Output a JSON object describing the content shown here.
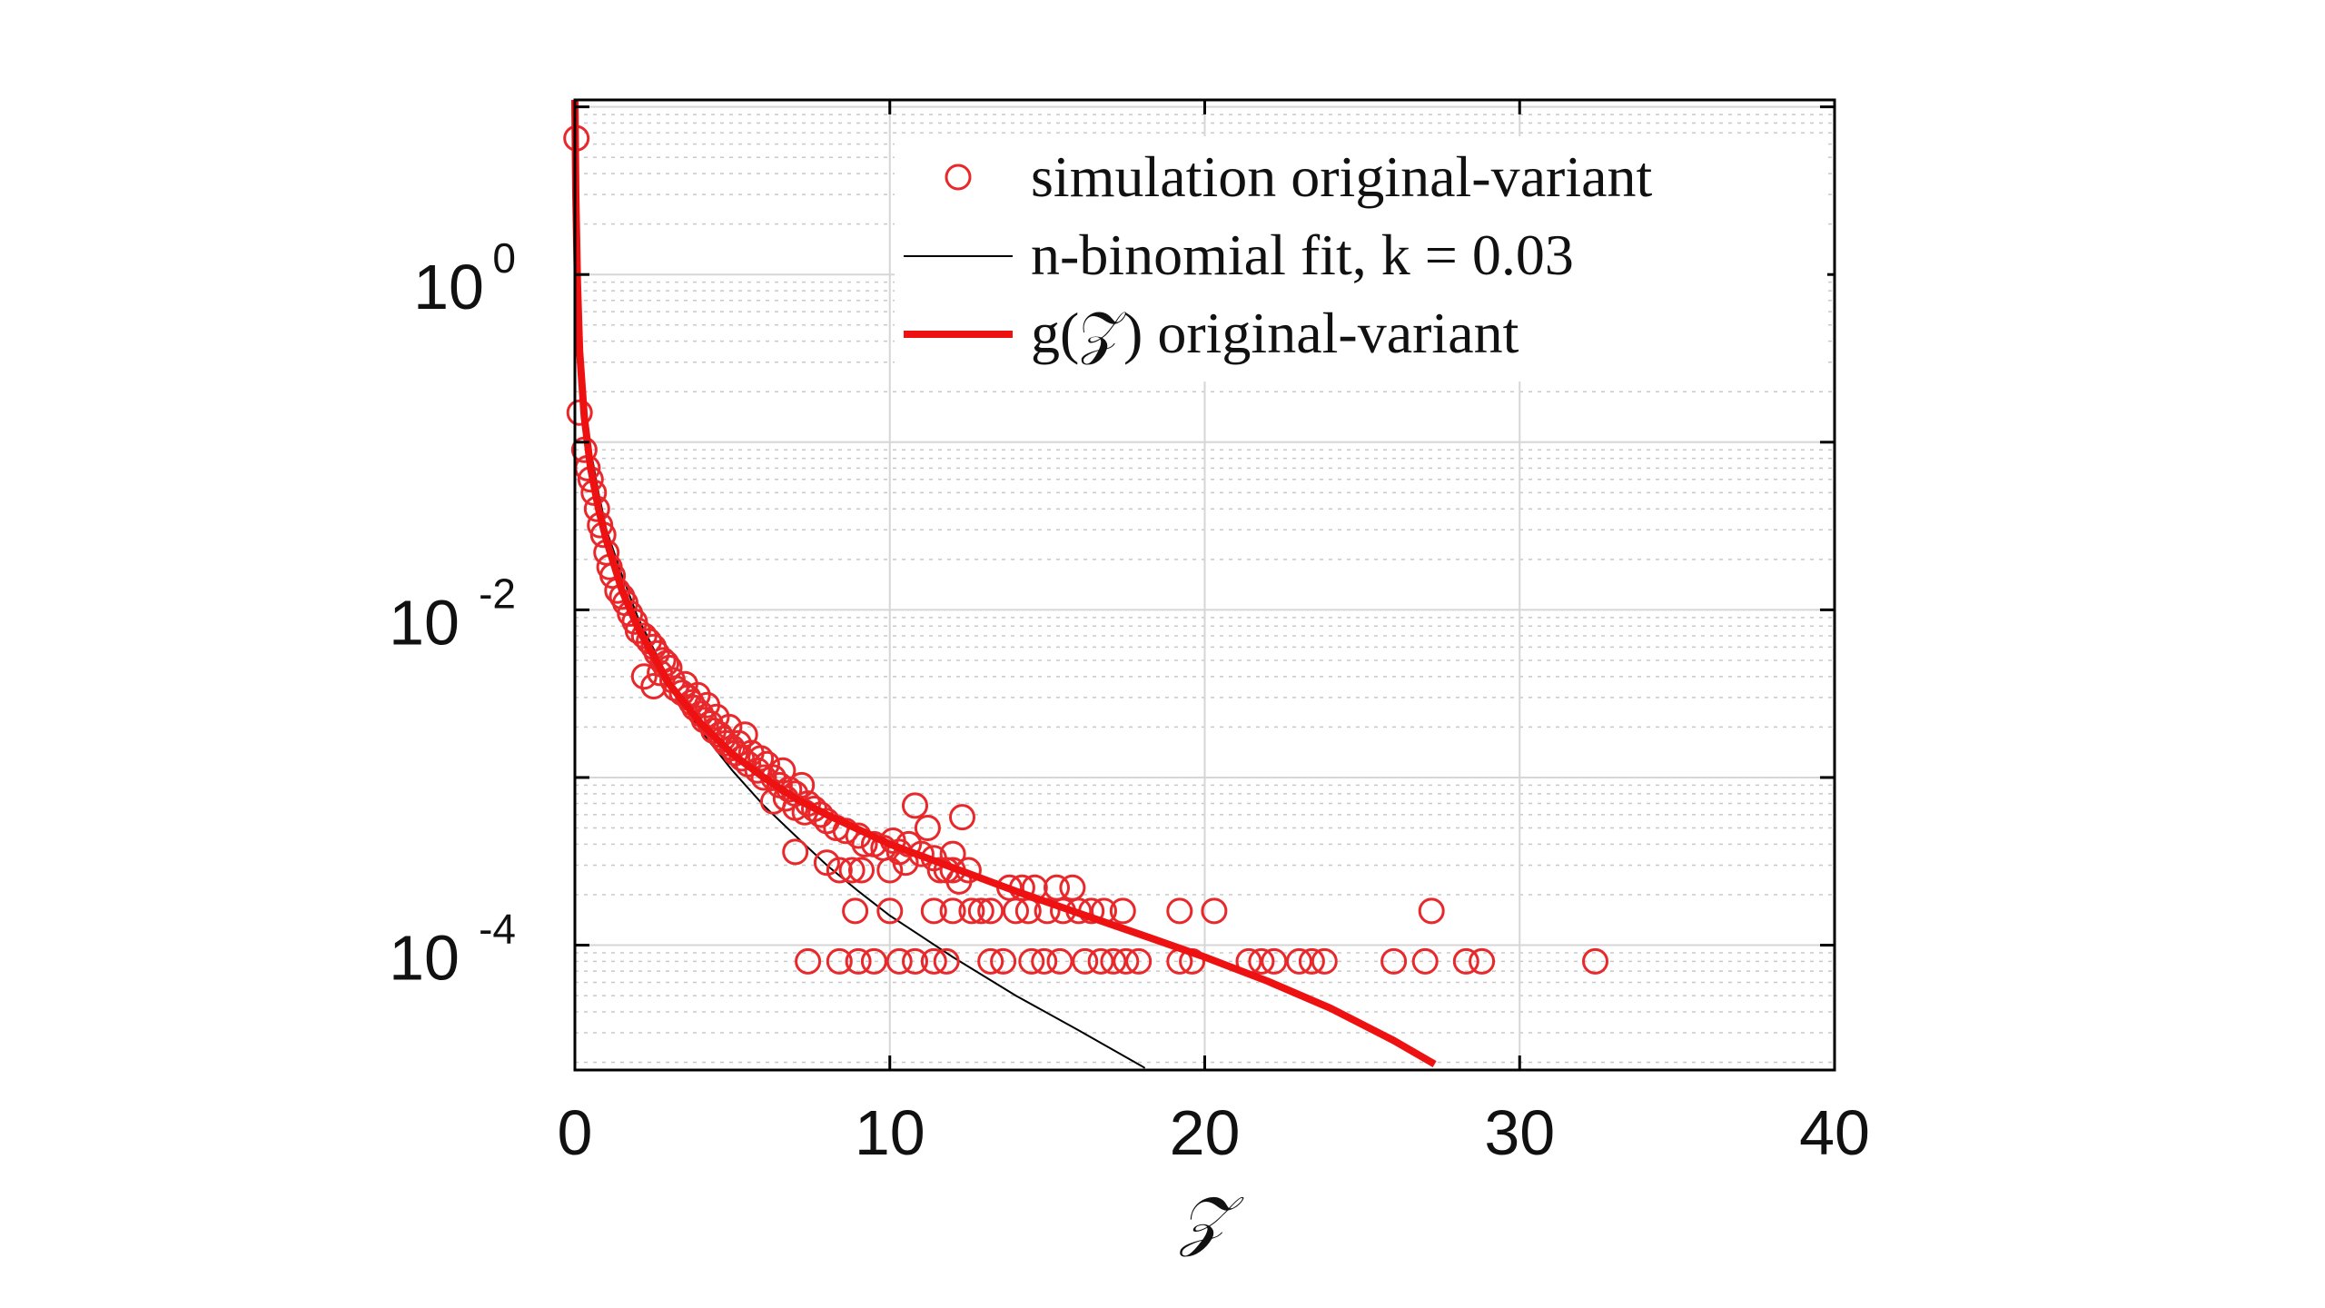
{
  "chart_data": {
    "type": "scatter",
    "title": "",
    "xlabel": "𝒵",
    "ylabel": "",
    "x_scale": "linear",
    "y_scale": "log",
    "xlim": [
      0,
      40
    ],
    "ylim": [
      1.8e-05,
      11
    ],
    "x_ticks": [
      0,
      10,
      20,
      30,
      40
    ],
    "x_tick_labels": [
      "0",
      "10",
      "20",
      "30",
      "40"
    ],
    "y_ticks": [
      1,
      0.01,
      0.0001
    ],
    "y_tick_labels": [
      {
        "base": "10",
        "exp": "0"
      },
      {
        "base": "10",
        "exp": "-2"
      },
      {
        "base": "10",
        "exp": "-4"
      }
    ],
    "grid": true,
    "minor_grid": true,
    "legend_position": "top-right",
    "series": [
      {
        "name": "simulation original-variant",
        "kind": "markers",
        "marker": "open-circle",
        "color": "#e8282b",
        "points": [
          [
            0.05,
            6.5
          ],
          [
            0.15,
            0.15
          ],
          [
            0.3,
            0.09
          ],
          [
            0.4,
            0.07
          ],
          [
            0.5,
            0.06
          ],
          [
            0.6,
            0.05
          ],
          [
            0.7,
            0.04
          ],
          [
            0.8,
            0.032
          ],
          [
            0.9,
            0.028
          ],
          [
            1.0,
            0.022
          ],
          [
            1.1,
            0.018
          ],
          [
            1.2,
            0.016
          ],
          [
            1.35,
            0.013
          ],
          [
            1.5,
            0.012
          ],
          [
            1.6,
            0.011
          ],
          [
            1.75,
            0.0095
          ],
          [
            1.9,
            0.0085
          ],
          [
            2.0,
            0.0075
          ],
          [
            2.2,
            0.007
          ],
          [
            2.35,
            0.0065
          ],
          [
            2.5,
            0.006
          ],
          [
            2.6,
            0.0055
          ],
          [
            2.8,
            0.005
          ],
          [
            2.9,
            0.0048
          ],
          [
            3.0,
            0.0045
          ],
          [
            2.2,
            0.004
          ],
          [
            2.5,
            0.0035
          ],
          [
            2.7,
            0.0042
          ],
          [
            3.1,
            0.0038
          ],
          [
            3.2,
            0.0034
          ],
          [
            3.4,
            0.0032
          ],
          [
            3.5,
            0.0036
          ],
          [
            3.6,
            0.003
          ],
          [
            3.7,
            0.0028
          ],
          [
            3.8,
            0.0026
          ],
          [
            3.9,
            0.0031
          ],
          [
            4.0,
            0.0024
          ],
          [
            4.1,
            0.0022
          ],
          [
            4.2,
            0.0027
          ],
          [
            4.3,
            0.0021
          ],
          [
            4.4,
            0.0019
          ],
          [
            4.5,
            0.0023
          ],
          [
            4.6,
            0.0018
          ],
          [
            4.7,
            0.0017
          ],
          [
            4.8,
            0.0016
          ],
          [
            4.9,
            0.002
          ],
          [
            5.0,
            0.0015
          ],
          [
            5.1,
            0.0014
          ],
          [
            5.2,
            0.0016
          ],
          [
            5.3,
            0.0013
          ],
          [
            5.5,
            0.0012
          ],
          [
            5.6,
            0.0014
          ],
          [
            5.8,
            0.0011
          ],
          [
            6.0,
            0.001
          ],
          [
            5.4,
            0.0018
          ],
          [
            5.9,
            0.0013
          ],
          [
            6.1,
            0.0012
          ],
          [
            6.3,
            0.001
          ],
          [
            6.5,
            0.0009
          ],
          [
            6.6,
            0.0011
          ],
          [
            6.8,
            0.00085
          ],
          [
            7.0,
            0.0008
          ],
          [
            7.2,
            0.0009
          ],
          [
            7.4,
            0.0007
          ],
          [
            7.6,
            0.00065
          ],
          [
            6.3,
            0.00072
          ],
          [
            6.7,
            0.00075
          ],
          [
            7.0,
            0.00066
          ],
          [
            7.3,
            0.00062
          ],
          [
            7.8,
            0.0006
          ],
          [
            8.0,
            0.00055
          ],
          [
            8.3,
            0.0005
          ],
          [
            8.6,
            0.00048
          ],
          [
            9.0,
            0.00045
          ],
          [
            9.2,
            0.0004
          ],
          [
            9.5,
            0.0004
          ],
          [
            9.8,
            0.00038
          ],
          [
            10.1,
            0.00042
          ],
          [
            10.3,
            0.00036
          ],
          [
            10.6,
            0.0004
          ],
          [
            11.0,
            0.00035
          ],
          [
            11.4,
            0.00033
          ],
          [
            12.0,
            0.00035
          ],
          [
            10.8,
            0.00068
          ],
          [
            11.2,
            0.0005
          ],
          [
            12.3,
            0.00058
          ],
          [
            7.0,
            0.00036
          ],
          [
            8.0,
            0.00031
          ],
          [
            8.4,
            0.00028
          ],
          [
            8.8,
            0.00028
          ],
          [
            9.1,
            0.00028
          ],
          [
            10.0,
            0.00028
          ],
          [
            10.5,
            0.00031
          ],
          [
            11.6,
            0.00028
          ],
          [
            12.0,
            0.00028
          ],
          [
            12.5,
            0.00028
          ],
          [
            13.8,
            0.00022
          ],
          [
            14.2,
            0.00022
          ],
          [
            14.6,
            0.00022
          ],
          [
            15.3,
            0.00022
          ],
          [
            15.8,
            0.00022
          ],
          [
            11.8,
            0.00028
          ],
          [
            12.2,
            0.00024
          ],
          [
            8.9,
            0.00016
          ],
          [
            10.0,
            0.00016
          ],
          [
            11.4,
            0.00016
          ],
          [
            12.0,
            0.00016
          ],
          [
            12.6,
            0.00016
          ],
          [
            12.9,
            0.00016
          ],
          [
            13.2,
            0.00016
          ],
          [
            14.0,
            0.00016
          ],
          [
            14.4,
            0.00016
          ],
          [
            15.0,
            0.00016
          ],
          [
            15.5,
            0.00016
          ],
          [
            16.0,
            0.00016
          ],
          [
            16.4,
            0.00016
          ],
          [
            16.8,
            0.00016
          ],
          [
            17.4,
            0.00016
          ],
          [
            19.2,
            0.00016
          ],
          [
            20.3,
            0.00016
          ],
          [
            27.2,
            0.00016
          ],
          [
            7.4,
            8e-05
          ],
          [
            8.4,
            8e-05
          ],
          [
            9.0,
            8e-05
          ],
          [
            9.5,
            8e-05
          ],
          [
            10.3,
            8e-05
          ],
          [
            10.8,
            8e-05
          ],
          [
            11.4,
            8e-05
          ],
          [
            11.8,
            8e-05
          ],
          [
            13.2,
            8e-05
          ],
          [
            13.6,
            8e-05
          ],
          [
            14.5,
            8e-05
          ],
          [
            14.9,
            8e-05
          ],
          [
            15.4,
            8e-05
          ],
          [
            16.2,
            8e-05
          ],
          [
            16.7,
            8e-05
          ],
          [
            17.1,
            8e-05
          ],
          [
            17.5,
            8e-05
          ],
          [
            17.9,
            8e-05
          ],
          [
            19.2,
            8e-05
          ],
          [
            19.6,
            8e-05
          ],
          [
            21.4,
            8e-05
          ],
          [
            21.8,
            8e-05
          ],
          [
            22.2,
            8e-05
          ],
          [
            23.0,
            8e-05
          ],
          [
            23.4,
            8e-05
          ],
          [
            23.8,
            8e-05
          ],
          [
            26.0,
            8e-05
          ],
          [
            27.0,
            8e-05
          ],
          [
            28.3,
            8e-05
          ],
          [
            28.8,
            8e-05
          ],
          [
            32.4,
            8e-05
          ]
        ]
      },
      {
        "name": "n-binomial fit, k = 0.03",
        "kind": "line",
        "color": "#000000",
        "points": [
          [
            0.05,
            1.3
          ],
          [
            0.15,
            0.4
          ],
          [
            0.3,
            0.18
          ],
          [
            0.5,
            0.09
          ],
          [
            0.75,
            0.05
          ],
          [
            1.0,
            0.03
          ],
          [
            1.5,
            0.016
          ],
          [
            2.0,
            0.009
          ],
          [
            3.0,
            0.0038
          ],
          [
            4.0,
            0.0019
          ],
          [
            5.0,
            0.0011
          ],
          [
            6.0,
            0.00068
          ],
          [
            7.0,
            0.00045
          ],
          [
            8.0,
            0.0003
          ],
          [
            9.0,
            0.00021
          ],
          [
            10.0,
            0.00015
          ],
          [
            12.0,
            8.5e-05
          ],
          [
            14.0,
            5e-05
          ],
          [
            16.0,
            3.1e-05
          ],
          [
            18.0,
            1.9e-05
          ],
          [
            18.1,
            1.85e-05
          ]
        ]
      },
      {
        "name": "g(𝒵) original-variant",
        "kind": "line",
        "color": "#ee1111",
        "points": [
          [
            0.0,
            11
          ],
          [
            0.03,
            3.0
          ],
          [
            0.08,
            0.9
          ],
          [
            0.15,
            0.35
          ],
          [
            0.3,
            0.14
          ],
          [
            0.5,
            0.07
          ],
          [
            0.75,
            0.04
          ],
          [
            1.0,
            0.026
          ],
          [
            1.5,
            0.013
          ],
          [
            2.0,
            0.0078
          ],
          [
            3.0,
            0.0036
          ],
          [
            4.0,
            0.0021
          ],
          [
            5.0,
            0.00138
          ],
          [
            6.0,
            0.001
          ],
          [
            7.0,
            0.00075
          ],
          [
            8.0,
            0.0006
          ],
          [
            10.0,
            0.0004
          ],
          [
            12.0,
            0.00029
          ],
          [
            14.0,
            0.00021
          ],
          [
            16.0,
            0.000155
          ],
          [
            18.0,
            0.000115
          ],
          [
            20.0,
            8.5e-05
          ],
          [
            22.0,
            6.1e-05
          ],
          [
            24.0,
            4.2e-05
          ],
          [
            26.0,
            2.7e-05
          ],
          [
            27.2,
            2e-05
          ],
          [
            27.3,
            1.95e-05
          ]
        ]
      }
    ]
  }
}
